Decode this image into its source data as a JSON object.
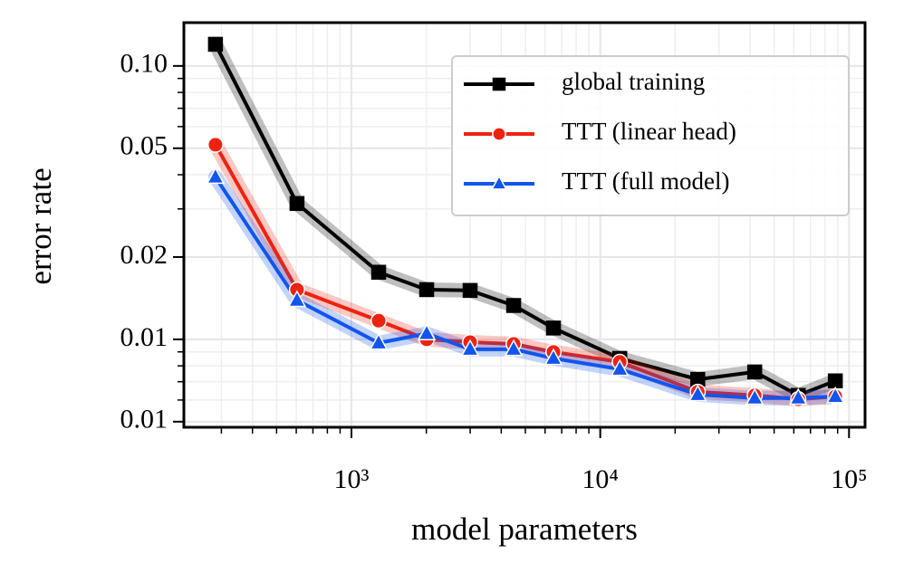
{
  "chart_data": {
    "type": "line",
    "xlabel": "model parameters",
    "ylabel": "error rate",
    "x": [
      284,
      604,
      1286,
      2006,
      2999,
      4487,
      6486,
      11980,
      24660,
      41780,
      62520,
      88100
    ],
    "series": [
      {
        "name": "global training",
        "color": "#000000",
        "marker": "square",
        "values": [
          0.12,
          0.0314,
          0.0176,
          0.0152,
          0.0151,
          0.0133,
          0.011,
          0.00852,
          0.00714,
          0.0076,
          0.00624,
          0.00705
        ]
      },
      {
        "name": "TTT (linear head)",
        "color": "#ee2211",
        "marker": "circle",
        "values": [
          0.0515,
          0.0152,
          0.0117,
          0.01,
          0.00977,
          0.00962,
          0.00899,
          0.00827,
          0.00643,
          0.00624,
          0.00604,
          0.00618
        ]
      },
      {
        "name": "TTT (full model)",
        "color": "#1155ee",
        "marker": "triangle",
        "values": [
          0.0392,
          0.0139,
          0.0097,
          0.0105,
          0.0092,
          0.0092,
          0.00852,
          0.00778,
          0.00628,
          0.0061,
          0.0061,
          0.00618
        ]
      }
    ],
    "xscale": "log",
    "yscale": "log",
    "xlim": [
      212,
      116000
    ],
    "ylim": [
      0.00477,
      0.144
    ],
    "xticks": [
      {
        "value": 1000,
        "label": "10³"
      },
      {
        "value": 10000,
        "label": "10⁴"
      },
      {
        "value": 100000,
        "label": "10⁵"
      }
    ],
    "yticks": [
      {
        "value": 0.005,
        "label": "0.01"
      },
      0.01,
      0.02,
      0.05,
      {
        "value": 0.1,
        "label": "0.10"
      }
    ],
    "grid": true,
    "legend": "upper right"
  }
}
